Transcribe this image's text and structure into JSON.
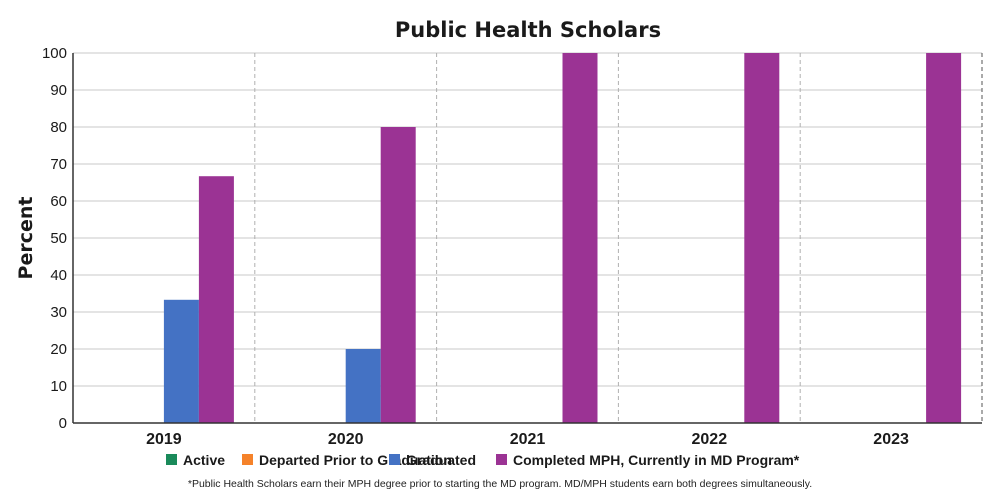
{
  "chart_data": {
    "type": "bar",
    "title": "Public Health Scholars",
    "xlabel": "",
    "ylabel": "Percent",
    "ylim": [
      0,
      100
    ],
    "yticks": [
      0,
      10,
      20,
      30,
      40,
      50,
      60,
      70,
      80,
      90,
      100
    ],
    "categories": [
      "2019",
      "2020",
      "2021",
      "2022",
      "2023"
    ],
    "series": [
      {
        "name": "Active",
        "color": "#1a8a5a",
        "values": [
          0,
          0,
          0,
          0,
          0
        ]
      },
      {
        "name": "Departed Prior to Graduation",
        "color": "#f5822a",
        "values": [
          0,
          0,
          0,
          0,
          0
        ]
      },
      {
        "name": "Graduated",
        "color": "#4472c4",
        "values": [
          33.3,
          20,
          0,
          0,
          0
        ]
      },
      {
        "name": "Completed MPH, Currently in MD Program*",
        "color": "#9b3394",
        "values": [
          66.7,
          80,
          100,
          100,
          100
        ]
      }
    ],
    "grid": true,
    "legend_position": "bottom",
    "footnote": "*Public Health Scholars earn their MPH degree prior to starting the MD program. MD/MPH students earn both degrees simultaneously."
  }
}
